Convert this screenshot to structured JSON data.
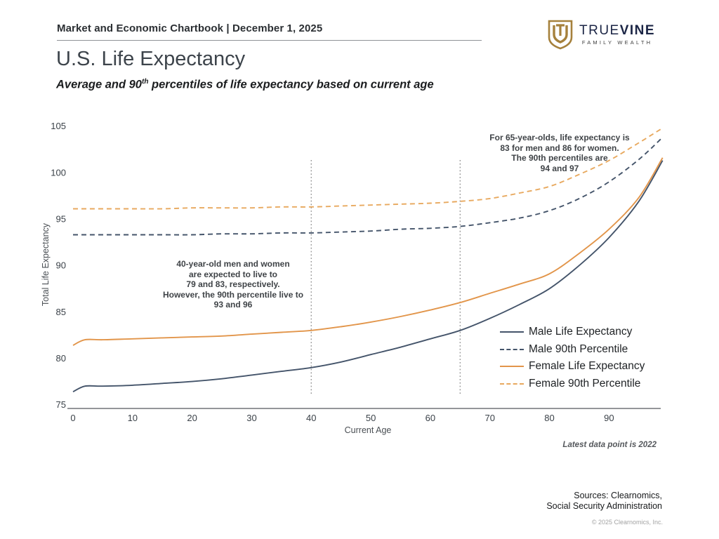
{
  "header": {
    "chartbook_title": "Market and Economic Chartbook | December 1, 2025",
    "logo": {
      "brand_first": "TRUE",
      "brand_second": "VINE",
      "tagline": "FAMILY WEALTH",
      "shield_color": "#A6813C",
      "brand_color": "#1B2545"
    }
  },
  "title": "U.S. Life Expectancy",
  "subtitle": {
    "prefix": "Average and 90",
    "sup": "th",
    "suffix": " percentiles of life expectancy based on current age"
  },
  "chart_data": {
    "type": "line",
    "xlabel": "Current Age",
    "ylabel": "Total Life Expectancy",
    "xlim": [
      0,
      99
    ],
    "ylim": [
      75,
      105
    ],
    "x_ticks": [
      0,
      10,
      20,
      30,
      40,
      50,
      60,
      70,
      80,
      90
    ],
    "y_ticks": [
      75,
      80,
      85,
      90,
      95,
      100,
      105
    ],
    "grid": false,
    "legend_position": "lower-right-inside",
    "x": [
      0,
      2,
      5,
      10,
      15,
      20,
      25,
      30,
      35,
      40,
      45,
      50,
      55,
      60,
      65,
      70,
      75,
      80,
      85,
      90,
      95,
      99
    ],
    "series": [
      {
        "name": "Male Life Expectancy",
        "style": "solid",
        "color": "#44546A",
        "values": [
          76.4,
          77.0,
          77.0,
          77.1,
          77.3,
          77.5,
          77.8,
          78.2,
          78.6,
          79.0,
          79.6,
          80.4,
          81.2,
          82.1,
          83.0,
          84.3,
          85.8,
          87.5,
          90.0,
          93.0,
          96.9,
          101.3
        ]
      },
      {
        "name": "Male 90th Percentile",
        "style": "dashed",
        "color": "#44546A",
        "values": [
          93.3,
          93.3,
          93.3,
          93.3,
          93.3,
          93.3,
          93.4,
          93.4,
          93.5,
          93.5,
          93.6,
          93.7,
          93.9,
          94.0,
          94.2,
          94.6,
          95.1,
          95.9,
          97.2,
          99.0,
          101.4,
          103.8
        ]
      },
      {
        "name": "Female Life Expectancy",
        "style": "solid",
        "color": "#E2954A",
        "values": [
          81.4,
          82.0,
          82.0,
          82.1,
          82.2,
          82.3,
          82.4,
          82.6,
          82.8,
          83.0,
          83.4,
          83.9,
          84.5,
          85.2,
          86.0,
          87.0,
          88.0,
          89.1,
          91.3,
          93.9,
          97.3,
          101.6
        ]
      },
      {
        "name": "Female 90th Percentile",
        "style": "dashed",
        "color": "#E8A95F",
        "values": [
          96.1,
          96.1,
          96.1,
          96.1,
          96.1,
          96.2,
          96.2,
          96.2,
          96.3,
          96.3,
          96.4,
          96.5,
          96.6,
          96.7,
          96.9,
          97.2,
          97.8,
          98.5,
          99.8,
          101.3,
          103.2,
          104.8
        ]
      }
    ],
    "reference_lines": {
      "ages": [
        40,
        65
      ],
      "color": "#8F8F8F"
    },
    "annotations": {
      "age40": [
        "40-year-old men and women",
        "are expected to live to",
        "79 and 83, respectively.",
        "However, the 90th percentile live to",
        "93 and 96"
      ],
      "age65": [
        "For 65-year-olds, life expectancy is",
        "83 for men and 86 for women.",
        "The 90th percentiles are",
        "94 and 97"
      ]
    },
    "note": "Latest data point is 2022",
    "axis_color": "#55585C",
    "tick_color": "#3A4148"
  },
  "footer": {
    "sources_line1": "Sources: Clearnomics,",
    "sources_line2": "Social Security Administration",
    "copyright": "© 2025 Clearnomics, Inc."
  }
}
